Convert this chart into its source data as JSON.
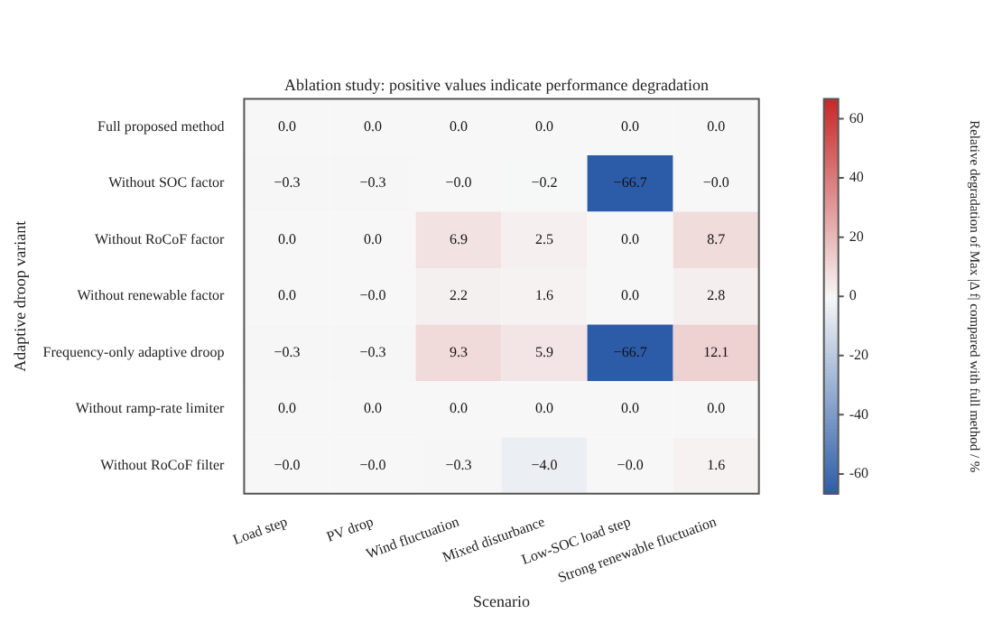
{
  "chart_data": {
    "type": "heatmap",
    "title": "Ablation study: positive values indicate performance degradation",
    "xlabel": "Scenario",
    "ylabel": "Adaptive droop variant",
    "clabel": "Relative degradation of Max |Δ f| compared with full method / %",
    "categories": [
      "Load step",
      "PV drop",
      "Wind fluctuation",
      "Mixed disturbance",
      "Low-SOC load step",
      "Strong renewable fluctuation"
    ],
    "y_categories": [
      "Full proposed method",
      "Without SOC factor",
      "Without RoCoF factor",
      "Without renewable factor",
      "Frequency-only adaptive droop",
      "Without ramp-rate limiter",
      "Without RoCoF filter"
    ],
    "cells": [
      [
        0.0,
        0.0,
        0.0,
        0.0,
        0.0,
        0.0
      ],
      [
        -0.3,
        -0.3,
        -0.0,
        -0.2,
        -66.7,
        -0.0
      ],
      [
        0.0,
        0.0,
        6.9,
        2.5,
        0.0,
        8.7
      ],
      [
        0.0,
        -0.0,
        2.2,
        1.6,
        0.0,
        2.8
      ],
      [
        -0.3,
        -0.3,
        9.3,
        5.9,
        -66.7,
        12.1
      ],
      [
        0.0,
        0.0,
        0.0,
        0.0,
        0.0,
        0.0
      ],
      [
        -0.0,
        -0.0,
        -0.3,
        -4.0,
        -0.0,
        1.6
      ]
    ],
    "cell_labels": [
      [
        "0.0",
        "0.0",
        "0.0",
        "0.0",
        "0.0",
        "0.0"
      ],
      [
        "−0.3",
        "−0.3",
        "−0.0",
        "−0.2",
        "−66.7",
        "−0.0"
      ],
      [
        "0.0",
        "0.0",
        "6.9",
        "2.5",
        "0.0",
        "8.7"
      ],
      [
        "0.0",
        "−0.0",
        "2.2",
        "1.6",
        "0.0",
        "2.8"
      ],
      [
        "−0.3",
        "−0.3",
        "9.3",
        "5.9",
        "−66.7",
        "12.1"
      ],
      [
        "0.0",
        "0.0",
        "0.0",
        "0.0",
        "0.0",
        "0.0"
      ],
      [
        "−0.0",
        "−0.0",
        "−0.3",
        "−4.0",
        "−0.0",
        "1.6"
      ]
    ],
    "clim": [
      -66.7,
      66.7
    ],
    "cticks": [
      -60,
      -40,
      -20,
      0,
      20,
      40,
      60
    ]
  }
}
